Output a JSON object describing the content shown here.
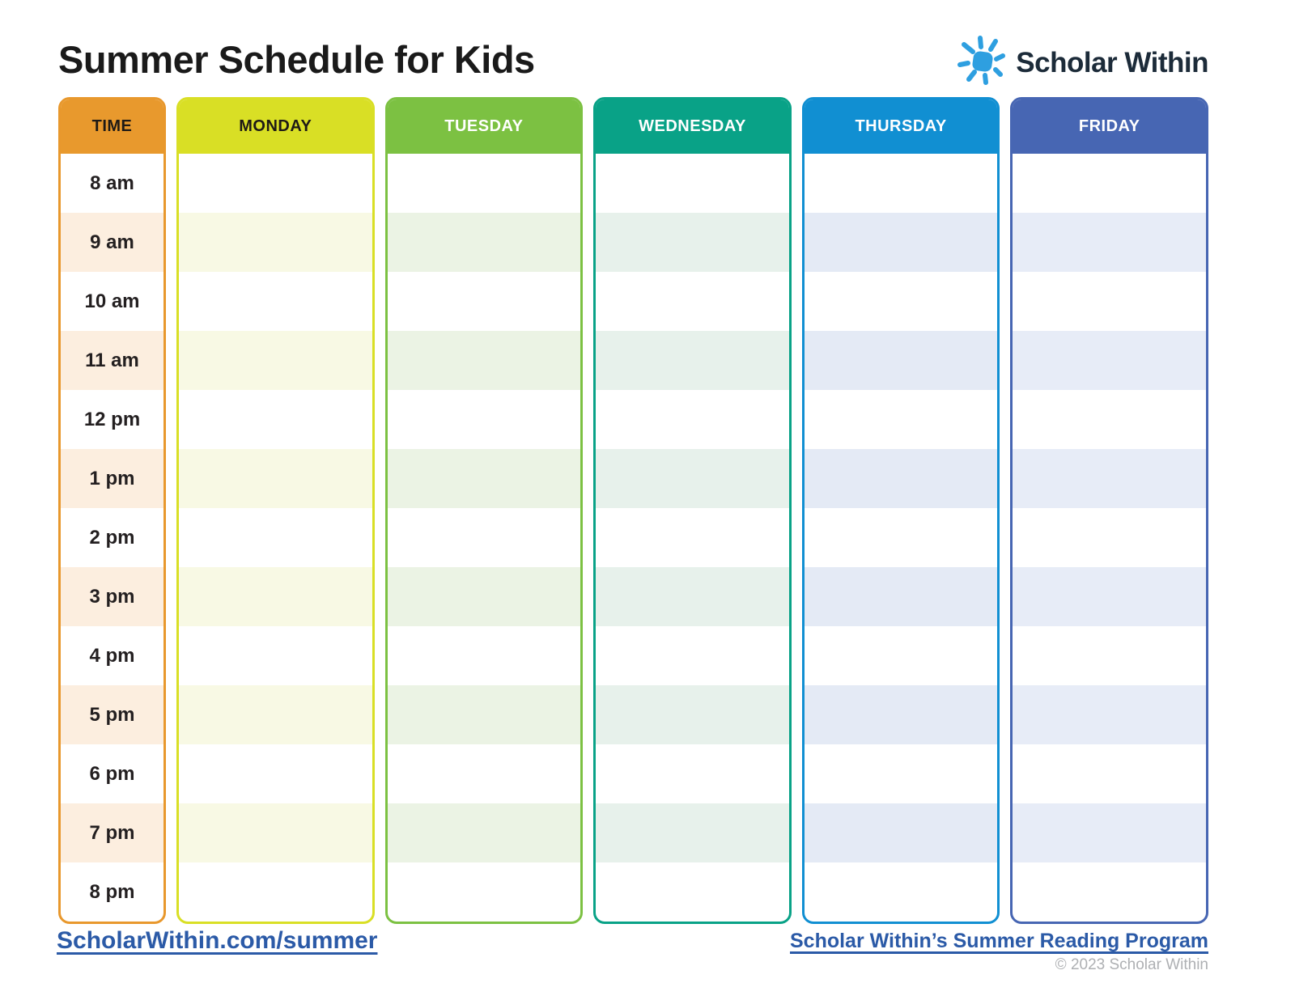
{
  "page_title": "Summer Schedule for Kids",
  "logo": {
    "text": "Scholar Within",
    "sun_color": "#2E9FE0",
    "text_color": "#1C2B39"
  },
  "schedule": {
    "time_column": {
      "header": "TIME",
      "header_color": "#E8992D",
      "header_text_color": "#1E1A16",
      "border_color": "#E8982D",
      "stripe_color": "#FCEEDF",
      "times": [
        "8 am",
        "9 am",
        "10 am",
        "11 am",
        "12 pm",
        "1 pm",
        "2 pm",
        "3 pm",
        "4 pm",
        "5 pm",
        "6 pm",
        "7 pm",
        "8 pm"
      ]
    },
    "day_columns": [
      {
        "label": "MONDAY",
        "header_color": "#D9DF25",
        "header_text_color": "#1E1A16",
        "border_color": "#D9DF25",
        "stripe_color": "#F8F9E4"
      },
      {
        "label": "TUESDAY",
        "header_color": "#7CC142",
        "header_text_color": "#FFFFFF",
        "border_color": "#7CC142",
        "stripe_color": "#EBF3E4"
      },
      {
        "label": "WEDNESDAY",
        "header_color": "#09A287",
        "header_text_color": "#FFFFFF",
        "border_color": "#09A287",
        "stripe_color": "#E7F1EB"
      },
      {
        "label": "THURSDAY",
        "header_color": "#118FD2",
        "header_text_color": "#FFFFFF",
        "border_color": "#118FD2",
        "stripe_color": "#E4EAF5"
      },
      {
        "label": "FRIDAY",
        "header_color": "#4766B3",
        "header_text_color": "#FFFFFF",
        "border_color": "#4766B3",
        "stripe_color": "#E7ECF7"
      }
    ]
  },
  "footer": {
    "left_link": "ScholarWithin.com/summer",
    "right_link": "Scholar Within’s Summer Reading Program",
    "copyright": "© 2023 Scholar Within",
    "link_color": "#2B5AA7",
    "copyright_color": "#AEB0B3"
  }
}
